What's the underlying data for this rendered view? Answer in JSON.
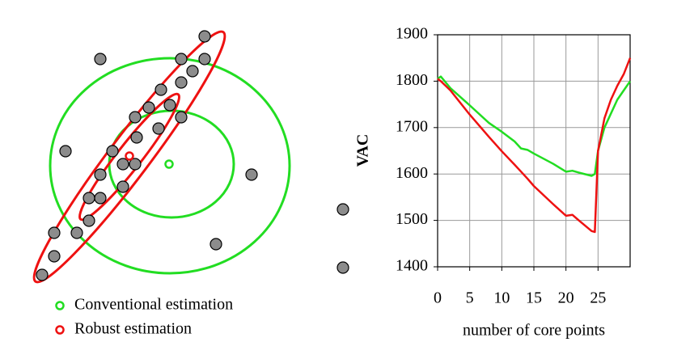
{
  "legend": {
    "conventional": "Conventional estimation",
    "robust": "Robust estimation"
  },
  "chart_data": {
    "type": "line",
    "xlabel": "number of core points",
    "ylabel": "VAC",
    "x": [
      0,
      0.5,
      2,
      5,
      8,
      10,
      12,
      13,
      14,
      15,
      18,
      20,
      21,
      22,
      24,
      24.5,
      25,
      26,
      27,
      28,
      29,
      30
    ],
    "series": [
      {
        "name": "Conventional estimation",
        "color": "#22dd22",
        "values": [
          1805,
          1810,
          1785,
          1748,
          1710,
          1691,
          1670,
          1655,
          1652,
          1644,
          1622,
          1605,
          1607,
          1603,
          1596,
          1600,
          1650,
          1700,
          1730,
          1760,
          1780,
          1800
        ]
      },
      {
        "name": "Robust estimation",
        "color": "#ee1111",
        "values": [
          1805,
          1800,
          1780,
          1728,
          1680,
          1649,
          1620,
          1605,
          1590,
          1574,
          1535,
          1510,
          1512,
          1500,
          1477,
          1475,
          1650,
          1720,
          1760,
          1790,
          1815,
          1850
        ]
      }
    ],
    "xlim": [
      0,
      30
    ],
    "ylim": [
      1400,
      1900
    ],
    "xticks": [
      0,
      5,
      10,
      15,
      20,
      25
    ],
    "yticks": [
      1400,
      1500,
      1600,
      1700,
      1800,
      1900
    ],
    "grid": true
  }
}
